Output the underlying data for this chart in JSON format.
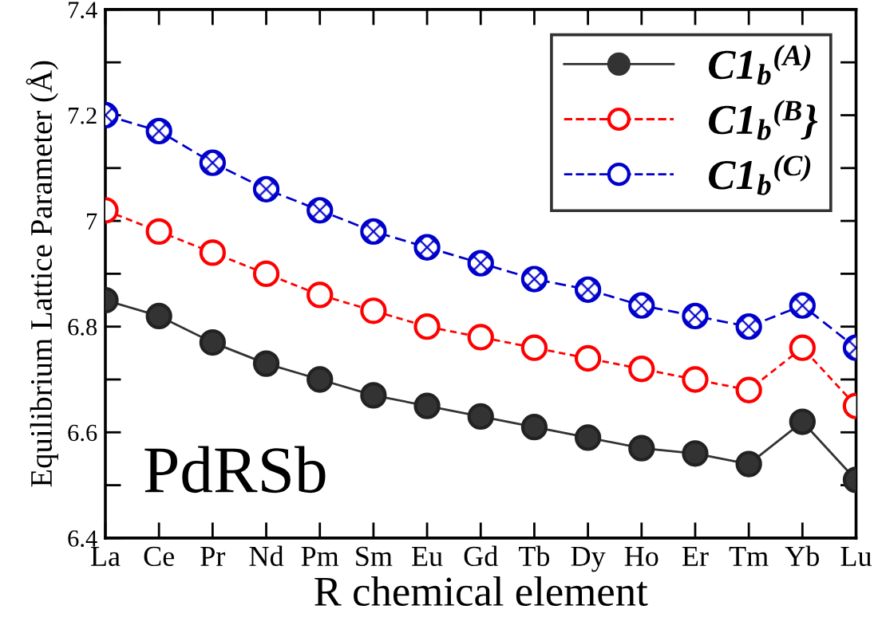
{
  "chart_data": {
    "type": "line",
    "categories": [
      "La",
      "Ce",
      "Pr",
      "Nd",
      "Pm",
      "Sm",
      "Eu",
      "Gd",
      "Tb",
      "Dy",
      "Ho",
      "Er",
      "Tm",
      "Yb",
      "Lu"
    ],
    "series": [
      {
        "name": "C1$_{b}$$^{(A)}$",
        "color": "#333333",
        "line_style": "solid",
        "values": [
          6.85,
          6.82,
          6.77,
          6.73,
          6.7,
          6.67,
          6.65,
          6.63,
          6.61,
          6.59,
          6.57,
          6.56,
          6.54,
          6.62,
          6.51
        ]
      },
      {
        "name": "C1$_{b}$$^{(B}$}",
        "color": "#ff0000",
        "line_style": "dashed",
        "values": [
          7.02,
          6.98,
          6.94,
          6.9,
          6.86,
          6.83,
          6.8,
          6.78,
          6.76,
          6.74,
          6.72,
          6.7,
          6.68,
          6.76,
          6.65
        ]
      },
      {
        "name": "C1$_{b}$$^{(C)}$",
        "color": "#0000cc",
        "line_style": "dashed",
        "values": [
          7.2,
          7.17,
          7.11,
          7.06,
          7.02,
          6.98,
          6.95,
          6.92,
          6.89,
          6.87,
          6.84,
          6.82,
          6.8,
          6.84,
          6.76
        ]
      }
    ],
    "xlabel": "R chemical element",
    "ylabel": "Equilibrium Lattice Parameter (Å)",
    "ylim": [
      6.4,
      7.4
    ],
    "yticks": [
      6.4,
      {
        "value": 6.5,
        "label": null
      },
      6.6,
      {
        "value": 6.7,
        "label": null
      },
      6.8,
      {
        "value": 6.9,
        "label": null
      },
      {
        "value": 7,
        "label": "7"
      },
      {
        "value": 7.1,
        "label": null
      },
      7.2,
      {
        "value": 7.3,
        "label": null
      },
      7.4
    ],
    "annotations": [
      {
        "text": "PdRSb"
      }
    ],
    "marker": "circle",
    "legend": "top right",
    "grid": false
  }
}
